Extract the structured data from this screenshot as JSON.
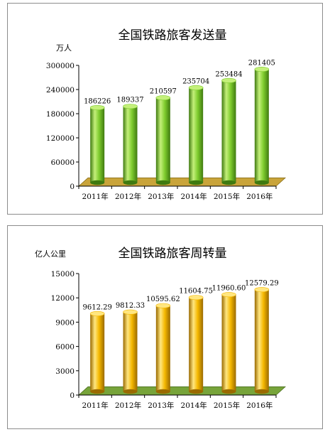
{
  "chart_data": [
    {
      "type": "bar",
      "title": "全国铁路旅客发送量",
      "ylabel": "万人",
      "categories": [
        "2011年",
        "2012年",
        "2013年",
        "2014年",
        "2015年",
        "2016年"
      ],
      "values": [
        186226,
        189337,
        210597,
        235704,
        253484,
        281405
      ],
      "value_labels": [
        "186226",
        "189337",
        "210597",
        "235704",
        "253484",
        "281405"
      ],
      "ylim": [
        0,
        300000
      ],
      "yticks": [
        0,
        60000,
        120000,
        180000,
        240000,
        300000
      ],
      "ytick_labels": [
        "0",
        "60000",
        "120000",
        "180000",
        "240000",
        "300000"
      ],
      "colors": {
        "bar_light": "#c4f07a",
        "bar_main": "#7fcc2e",
        "bar_dark": "#3f7a10",
        "floor": "#c9a43a",
        "floor_edge": "#8a6f18"
      },
      "grid": false,
      "legend": "none"
    },
    {
      "type": "bar",
      "title": "全国铁路旅客周转量",
      "ylabel": "亿人公里",
      "categories": [
        "2011年",
        "2012年",
        "2013年",
        "2014年",
        "2015年",
        "2016年"
      ],
      "values": [
        9612.29,
        9812.33,
        10595.62,
        11604.75,
        11960.6,
        12579.29
      ],
      "value_labels": [
        "9612.29",
        "9812.33",
        "10595.62",
        "11604.75",
        "11960.60",
        "12579.29"
      ],
      "ylim": [
        0,
        15000
      ],
      "yticks": [
        0,
        3000,
        6000,
        9000,
        12000,
        15000
      ],
      "ytick_labels": [
        "0",
        "3000",
        "6000",
        "9000",
        "12000",
        "15000"
      ],
      "colors": {
        "bar_light": "#ffe680",
        "bar_main": "#f5b800",
        "bar_dark": "#9a6a00",
        "floor": "#77a43a",
        "floor_edge": "#4d7020"
      },
      "grid": false,
      "legend": "none"
    }
  ]
}
